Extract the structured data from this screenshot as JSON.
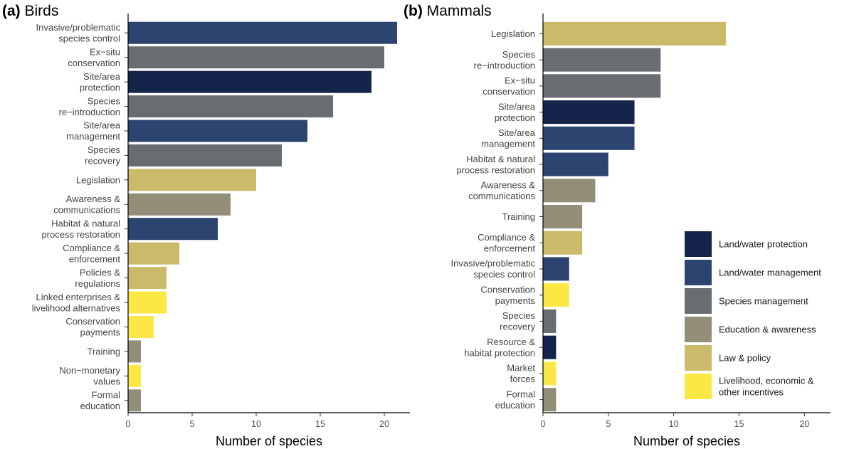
{
  "legend": [
    {
      "key": "land_water_protection",
      "label": "Land/water protection",
      "color": "#14244b"
    },
    {
      "key": "land_water_management",
      "label": "Land/water management",
      "color": "#2d4471"
    },
    {
      "key": "species_management",
      "label": "Species management",
      "color": "#676d71"
    },
    {
      "key": "education_awareness",
      "label": "Education & awareness",
      "color": "#928e78"
    },
    {
      "key": "law_policy",
      "label": "Law & policy",
      "color": "#cbba69"
    },
    {
      "key": "livelihood",
      "label": "Livelihood, economic &\nother incentives",
      "color": "#fbe845"
    }
  ],
  "chart_data": [
    {
      "type": "bar",
      "orientation": "horizontal",
      "panel": "(a)",
      "title": "Birds",
      "xlabel": "Number of species",
      "xlim": [
        0,
        22
      ],
      "xticks": [
        0,
        5,
        10,
        15,
        20
      ],
      "categories": [
        "Invasive/problematic\nspecies control",
        "Ex−situ\nconservation",
        "Site/area\nprotection",
        "Species\nre−introduction",
        "Site/area\nmanagement",
        "Species\nrecovery",
        "Legislation",
        "Awareness &\ncommunications",
        "Habitat & natural\nprocess restoration",
        "Compliance &\nenforcement",
        "Policies &\nregulations",
        "Linked enterprises &\nlivelihood alternatives",
        "Conservation\npayments",
        "Training",
        "Non−monetary\nvalues",
        "Formal\neducation"
      ],
      "values": [
        21,
        20,
        19,
        16,
        14,
        12,
        10,
        8,
        7,
        4,
        3,
        3,
        2,
        1,
        1,
        1
      ],
      "groups": [
        "land_water_management",
        "species_management",
        "land_water_protection",
        "species_management",
        "land_water_management",
        "species_management",
        "law_policy",
        "education_awareness",
        "land_water_management",
        "law_policy",
        "law_policy",
        "livelihood",
        "livelihood",
        "education_awareness",
        "livelihood",
        "education_awareness"
      ]
    },
    {
      "type": "bar",
      "orientation": "horizontal",
      "panel": "(b)",
      "title": "Mammals",
      "xlabel": "Number of species",
      "xlim": [
        0,
        22
      ],
      "xticks": [
        0,
        5,
        10,
        15,
        20
      ],
      "categories": [
        "Legislation",
        "Species\nre−introduction",
        "Ex−situ\nconservation",
        "Site/area\nprotection",
        "Site/area\nmanagement",
        "Habitat & natural\nprocess restoration",
        "Awareness &\ncommunications",
        "Training",
        "Compliance &\nenforcement",
        "Invasive/problematic\nspecies control",
        "Conservation\npayments",
        "Species\nrecovery",
        "Resource &\nhabitat protection",
        "Market\nforces",
        "Formal\neducation"
      ],
      "values": [
        14,
        9,
        9,
        7,
        7,
        5,
        4,
        3,
        3,
        2,
        2,
        1,
        1,
        1,
        1
      ],
      "groups": [
        "law_policy",
        "species_management",
        "species_management",
        "land_water_protection",
        "land_water_management",
        "land_water_management",
        "education_awareness",
        "education_awareness",
        "law_policy",
        "land_water_management",
        "livelihood",
        "species_management",
        "land_water_protection",
        "livelihood",
        "education_awareness"
      ]
    }
  ]
}
